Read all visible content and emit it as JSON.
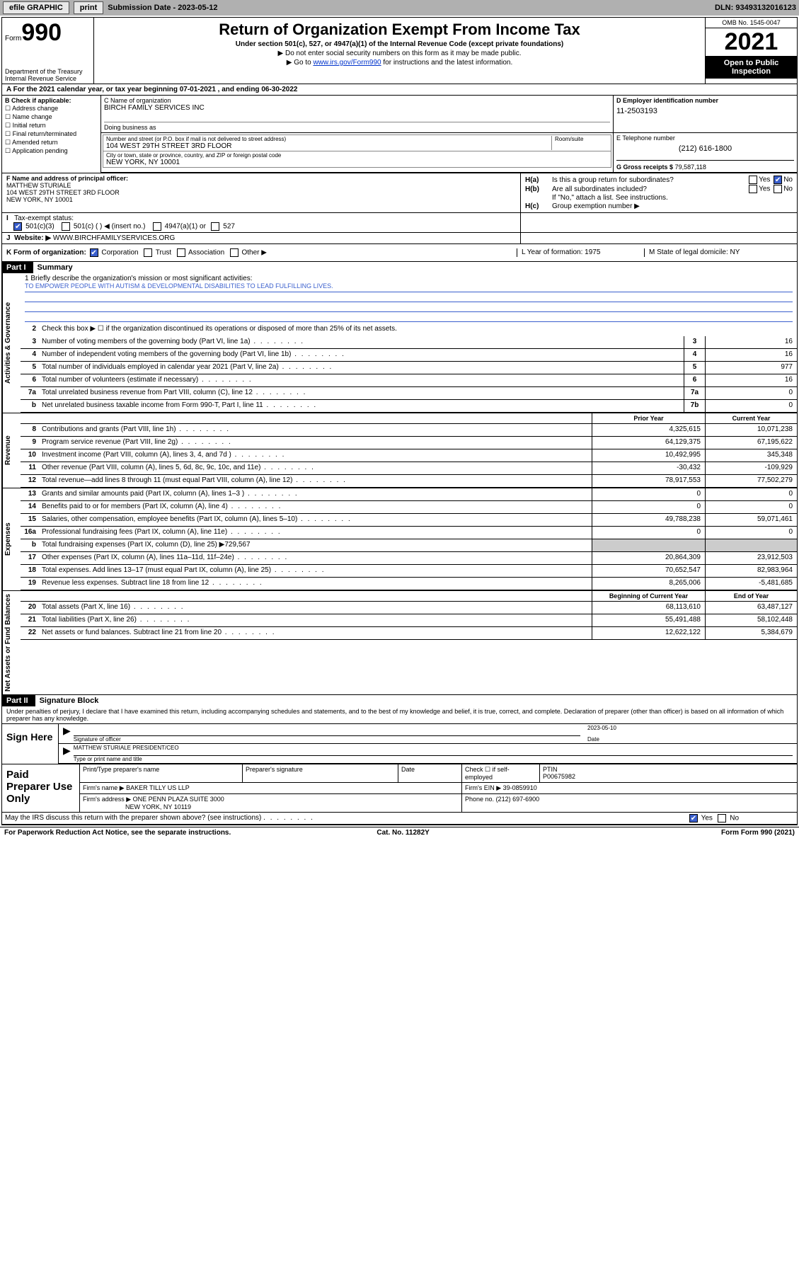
{
  "topbar": {
    "efile": "efile GRAPHIC",
    "print": "print",
    "sub_label": "Submission Date - 2023-05-12",
    "dln": "DLN: 93493132016123"
  },
  "header": {
    "form_prefix": "Form",
    "form_no": "990",
    "dept": "Department of the Treasury",
    "irs": "Internal Revenue Service",
    "title": "Return of Organization Exempt From Income Tax",
    "subtitle": "Under section 501(c), 527, or 4947(a)(1) of the Internal Revenue Code (except private foundations)",
    "note1": "▶ Do not enter social security numbers on this form as it may be made public.",
    "note2_pre": "▶ Go to ",
    "note2_link": "www.irs.gov/Form990",
    "note2_post": " for instructions and the latest information.",
    "omb": "OMB No. 1545-0047",
    "year": "2021",
    "open": "Open to Public Inspection"
  },
  "row_a": "A For the 2021 calendar year, or tax year beginning 07-01-2021   , and ending 06-30-2022",
  "col_b": {
    "title": "B Check if applicable:",
    "opts": [
      "Address change",
      "Name change",
      "Initial return",
      "Final return/terminated",
      "Amended return",
      "Application pending"
    ]
  },
  "col_c": {
    "label": "C Name of organization",
    "name": "BIRCH FAMILY SERVICES INC",
    "dba": "Doing business as",
    "addr1_label": "Number and street (or P.O. box if mail is not delivered to street address)",
    "addr1": "104 WEST 29TH STREET 3RD FLOOR",
    "room_label": "Room/suite",
    "addr2_label": "City or town, state or province, country, and ZIP or foreign postal code",
    "addr2": "NEW YORK, NY  10001"
  },
  "col_d": {
    "label": "D Employer identification number",
    "ein": "11-2503193"
  },
  "col_e": {
    "label": "E Telephone number",
    "phone": "(212) 616-1800"
  },
  "col_g": {
    "label": "G Gross receipts $",
    "val": "79,587,118"
  },
  "col_f": {
    "label": "F  Name and address of principal officer:",
    "l1": "MATTHEW STURIALE",
    "l2": "104 WEST 29TH STREET 3RD FLOOR",
    "l3": "NEW YORK, NY  10001"
  },
  "col_h": {
    "ha": "Is this a group return for subordinates?",
    "hb": "Are all subordinates included?",
    "hb_note": "If \"No,\" attach a list. See instructions.",
    "hc": "Group exemption number ▶"
  },
  "row_i": {
    "label": "Tax-exempt status:",
    "o1": "501(c)(3)",
    "o2": "501(c) (  ) ◀ (insert no.)",
    "o3": "4947(a)(1) or",
    "o4": "527"
  },
  "row_j": {
    "label": "Website: ▶",
    "val": "WWW.BIRCHFAMILYSERVICES.ORG"
  },
  "row_k": {
    "label": "K Form of organization:",
    "opts": [
      "Corporation",
      "Trust",
      "Association",
      "Other ▶"
    ],
    "l": "L Year of formation: 1975",
    "m": "M State of legal domicile: NY"
  },
  "part1": {
    "num": "Part I",
    "title": "Summary"
  },
  "vtabs": {
    "gov": "Activities & Governance",
    "rev": "Revenue",
    "exp": "Expenses",
    "net": "Net Assets or Fund Balances"
  },
  "mission": {
    "l1": "1  Briefly describe the organization's mission or most significant activities:",
    "text": "TO EMPOWER PEOPLE WITH AUTISM & DEVELOPMENTAL DISABILITIES TO LEAD FULFILLING LIVES."
  },
  "l2": "Check this box ▶ ☐  if the organization discontinued its operations or disposed of more than 25% of its net assets.",
  "lines_gov": [
    {
      "n": "3",
      "t": "Number of voting members of the governing body (Part VI, line 1a)",
      "box": "3",
      "v": "16"
    },
    {
      "n": "4",
      "t": "Number of independent voting members of the governing body (Part VI, line 1b)",
      "box": "4",
      "v": "16"
    },
    {
      "n": "5",
      "t": "Total number of individuals employed in calendar year 2021 (Part V, line 2a)",
      "box": "5",
      "v": "977"
    },
    {
      "n": "6",
      "t": "Total number of volunteers (estimate if necessary)",
      "box": "6",
      "v": "16"
    },
    {
      "n": "7a",
      "t": "Total unrelated business revenue from Part VIII, column (C), line 12",
      "box": "7a",
      "v": "0"
    },
    {
      "n": "b",
      "t": "Net unrelated business taxable income from Form 990-T, Part I, line 11",
      "box": "7b",
      "v": "0"
    }
  ],
  "col_hdrs": {
    "prior": "Prior Year",
    "curr": "Current Year",
    "beg": "Beginning of Current Year",
    "end": "End of Year"
  },
  "lines_rev": [
    {
      "n": "8",
      "t": "Contributions and grants (Part VIII, line 1h)",
      "p": "4,325,615",
      "c": "10,071,238"
    },
    {
      "n": "9",
      "t": "Program service revenue (Part VIII, line 2g)",
      "p": "64,129,375",
      "c": "67,195,622"
    },
    {
      "n": "10",
      "t": "Investment income (Part VIII, column (A), lines 3, 4, and 7d )",
      "p": "10,492,995",
      "c": "345,348"
    },
    {
      "n": "11",
      "t": "Other revenue (Part VIII, column (A), lines 5, 6d, 8c, 9c, 10c, and 11e)",
      "p": "-30,432",
      "c": "-109,929"
    },
    {
      "n": "12",
      "t": "Total revenue—add lines 8 through 11 (must equal Part VIII, column (A), line 12)",
      "p": "78,917,553",
      "c": "77,502,279"
    }
  ],
  "lines_exp": [
    {
      "n": "13",
      "t": "Grants and similar amounts paid (Part IX, column (A), lines 1–3 )",
      "p": "0",
      "c": "0"
    },
    {
      "n": "14",
      "t": "Benefits paid to or for members (Part IX, column (A), line 4)",
      "p": "0",
      "c": "0"
    },
    {
      "n": "15",
      "t": "Salaries, other compensation, employee benefits (Part IX, column (A), lines 5–10)",
      "p": "49,788,238",
      "c": "59,071,461"
    },
    {
      "n": "16a",
      "t": "Professional fundraising fees (Part IX, column (A), line 11e)",
      "p": "0",
      "c": "0"
    },
    {
      "n": "b",
      "t": "Total fundraising expenses (Part IX, column (D), line 25) ▶729,567",
      "p": "",
      "c": "",
      "shade": true
    },
    {
      "n": "17",
      "t": "Other expenses (Part IX, column (A), lines 11a–11d, 11f–24e)",
      "p": "20,864,309",
      "c": "23,912,503"
    },
    {
      "n": "18",
      "t": "Total expenses. Add lines 13–17 (must equal Part IX, column (A), line 25)",
      "p": "70,652,547",
      "c": "82,983,964"
    },
    {
      "n": "19",
      "t": "Revenue less expenses. Subtract line 18 from line 12",
      "p": "8,265,006",
      "c": "-5,481,685"
    }
  ],
  "lines_net": [
    {
      "n": "20",
      "t": "Total assets (Part X, line 16)",
      "p": "68,113,610",
      "c": "63,487,127"
    },
    {
      "n": "21",
      "t": "Total liabilities (Part X, line 26)",
      "p": "55,491,488",
      "c": "58,102,448"
    },
    {
      "n": "22",
      "t": "Net assets or fund balances. Subtract line 21 from line 20",
      "p": "12,622,122",
      "c": "5,384,679"
    }
  ],
  "part2": {
    "num": "Part II",
    "title": "Signature Block"
  },
  "sig": {
    "decl": "Under penalties of perjury, I declare that I have examined this return, including accompanying schedules and statements, and to the best of my knowledge and belief, it is true, correct, and complete. Declaration of preparer (other than officer) is based on all information of which preparer has any knowledge.",
    "sign_here": "Sign Here",
    "sig_officer": "Signature of officer",
    "date": "2023-05-10",
    "date_label": "Date",
    "name": "MATTHEW STURIALE  PRESIDENT/CEO",
    "name_label": "Type or print name and title"
  },
  "prep": {
    "label": "Paid Preparer Use Only",
    "h1": "Print/Type preparer's name",
    "h2": "Preparer's signature",
    "h3": "Date",
    "h4": "Check ☐ if self-employed",
    "h5_label": "PTIN",
    "h5": "P00675982",
    "firm_label": "Firm's name   ▶",
    "firm": "BAKER TILLY US LLP",
    "ein_label": "Firm's EIN ▶",
    "ein": "39-0859910",
    "addr_label": "Firm's address ▶",
    "addr1": "ONE PENN PLAZA SUITE 3000",
    "addr2": "NEW YORK, NY  10119",
    "phone_label": "Phone no.",
    "phone": "(212) 697-6900"
  },
  "discuss": "May the IRS discuss this return with the preparer shown above? (see instructions)",
  "footer": {
    "l": "For Paperwork Reduction Act Notice, see the separate instructions.",
    "m": "Cat. No. 11282Y",
    "r": "Form 990 (2021)"
  }
}
